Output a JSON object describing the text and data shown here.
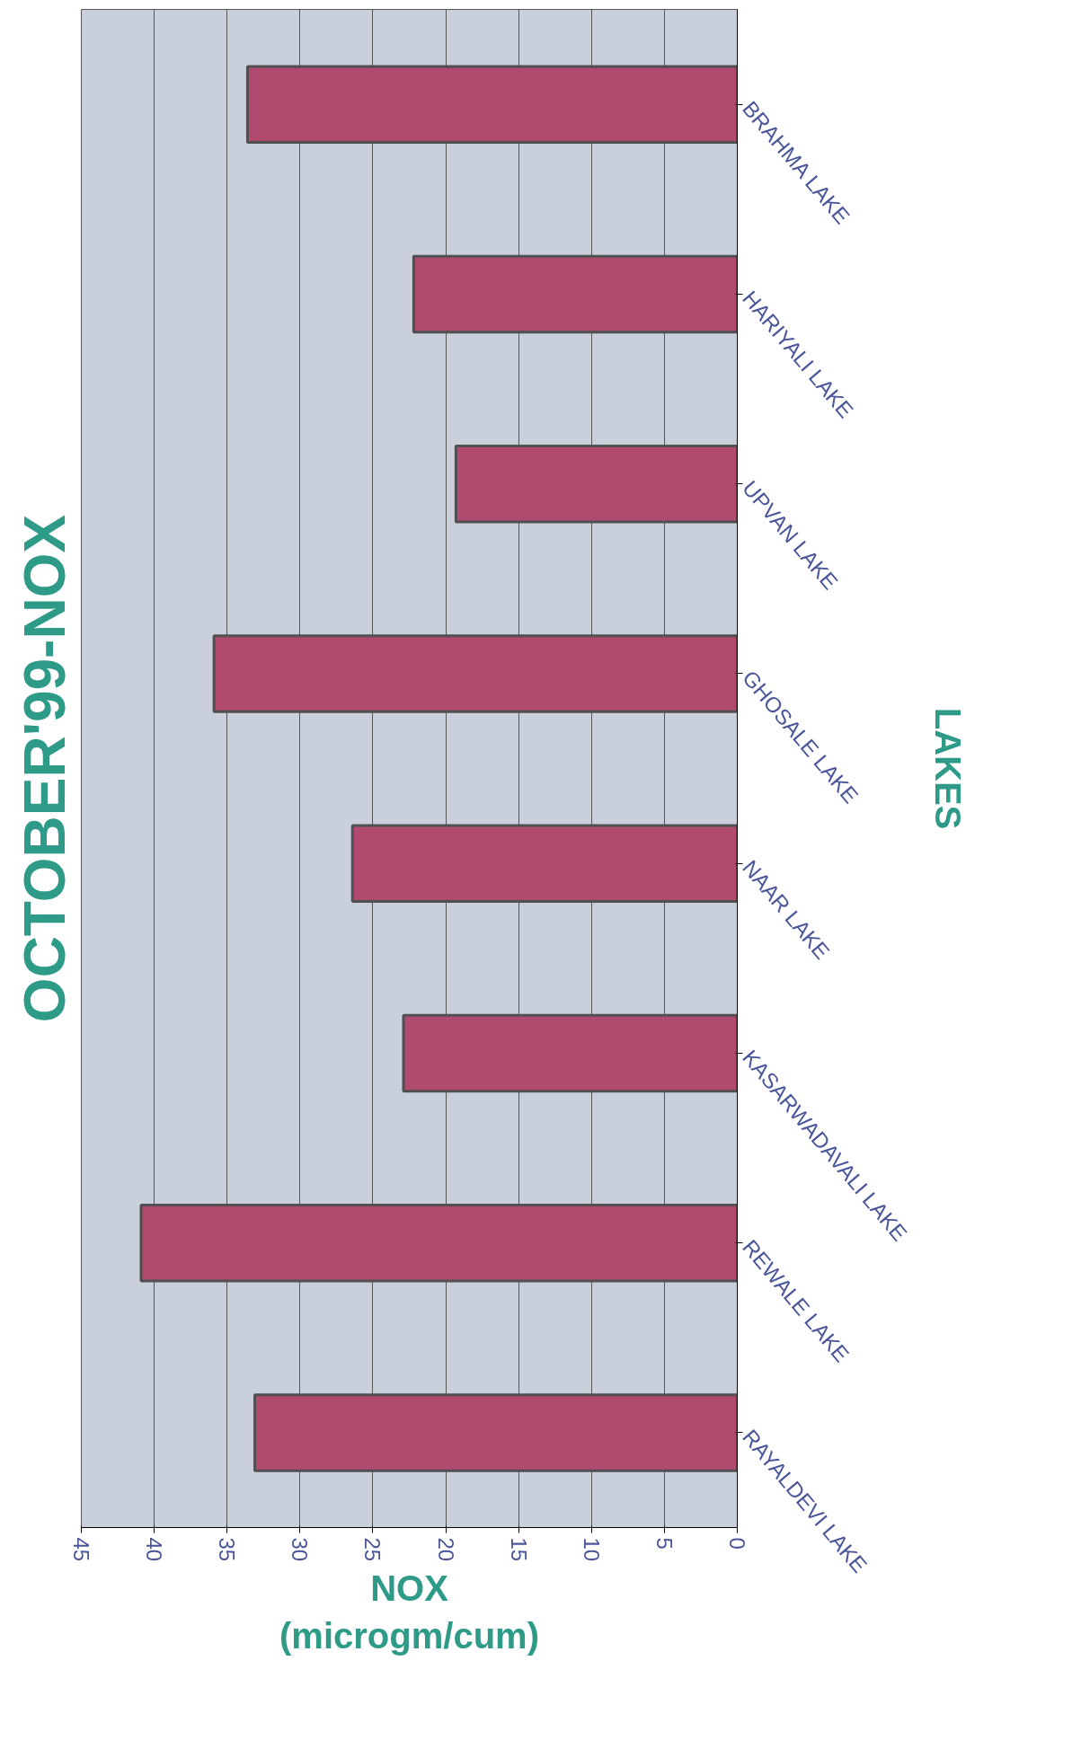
{
  "chart_data": {
    "type": "bar",
    "orientation": "horizontal",
    "title": "OCTOBER'99-NOX",
    "xlabel": "NOX\n(microgm/cum)",
    "ylabel": "LAKES",
    "categories": [
      "BRAHMA LAKE",
      "HARIYALI LAKE",
      "UPVAN LAKE",
      "GHOSALE LAKE",
      "NAAR LAKE",
      "KASARWADAVALI LAKE",
      "REWALE LAKE",
      "RAYALDEVI LAKE"
    ],
    "values": [
      33.6,
      22.2,
      19.3,
      35.9,
      26.4,
      22.9,
      40.9,
      33.1
    ],
    "color": "#b04a6e",
    "xlim": [
      45,
      0
    ],
    "xticks": [
      45,
      40,
      35,
      30,
      25,
      20,
      15,
      10,
      5,
      0
    ],
    "grid": "x"
  }
}
